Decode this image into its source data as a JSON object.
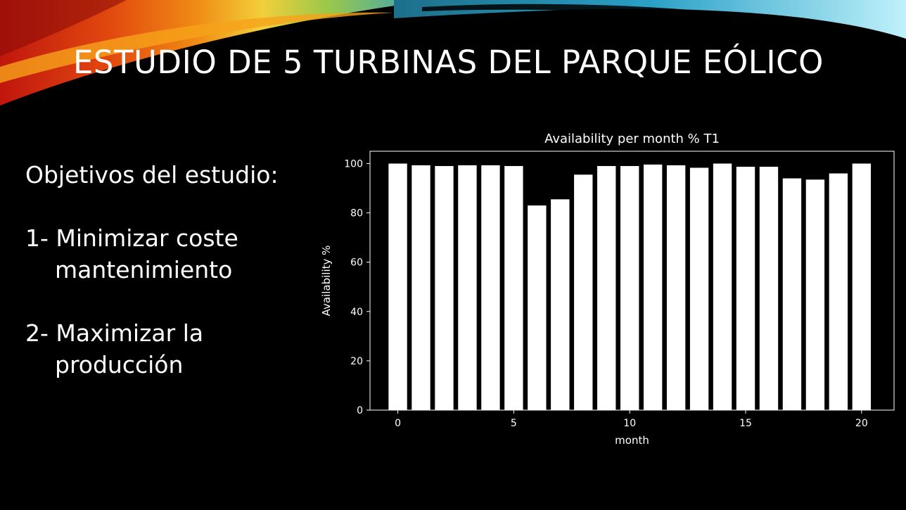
{
  "slide": {
    "title": "ESTUDIO DE 5 TURBINAS DEL PARQUE EÓLICO",
    "heading": "Objetivos del estudio:",
    "objectives": [
      "1- Minimizar coste mantenimiento",
      "2- Maximizar la producción"
    ]
  },
  "colors": {
    "background": "#000000",
    "bars": "#ffffff",
    "text": "#ffffff",
    "swoosh": [
      "#c0160d",
      "#f07f12",
      "#f6d93a",
      "#8bc34a",
      "#2aa0c6",
      "#9fe7f5"
    ]
  },
  "chart_data": {
    "type": "bar",
    "title": "Availability per month % T1",
    "xlabel": "month",
    "ylabel": "Availability %",
    "x": [
      0,
      1,
      2,
      3,
      4,
      5,
      6,
      7,
      8,
      9,
      10,
      11,
      12,
      13,
      14,
      15,
      16,
      17,
      18,
      19,
      20
    ],
    "values": [
      100,
      99.3,
      99,
      99.3,
      99.3,
      99,
      83,
      85.5,
      95.5,
      99,
      99,
      99.6,
      99.3,
      98.3,
      100,
      98.7,
      98.7,
      94,
      93.5,
      96,
      100
    ],
    "xlim": [
      -1.2,
      21.4
    ],
    "ylim": [
      0,
      105
    ],
    "xticks": [
      0,
      5,
      10,
      15,
      20
    ],
    "yticks": [
      0,
      20,
      40,
      60,
      80,
      100
    ],
    "grid": false,
    "legend": "none"
  }
}
